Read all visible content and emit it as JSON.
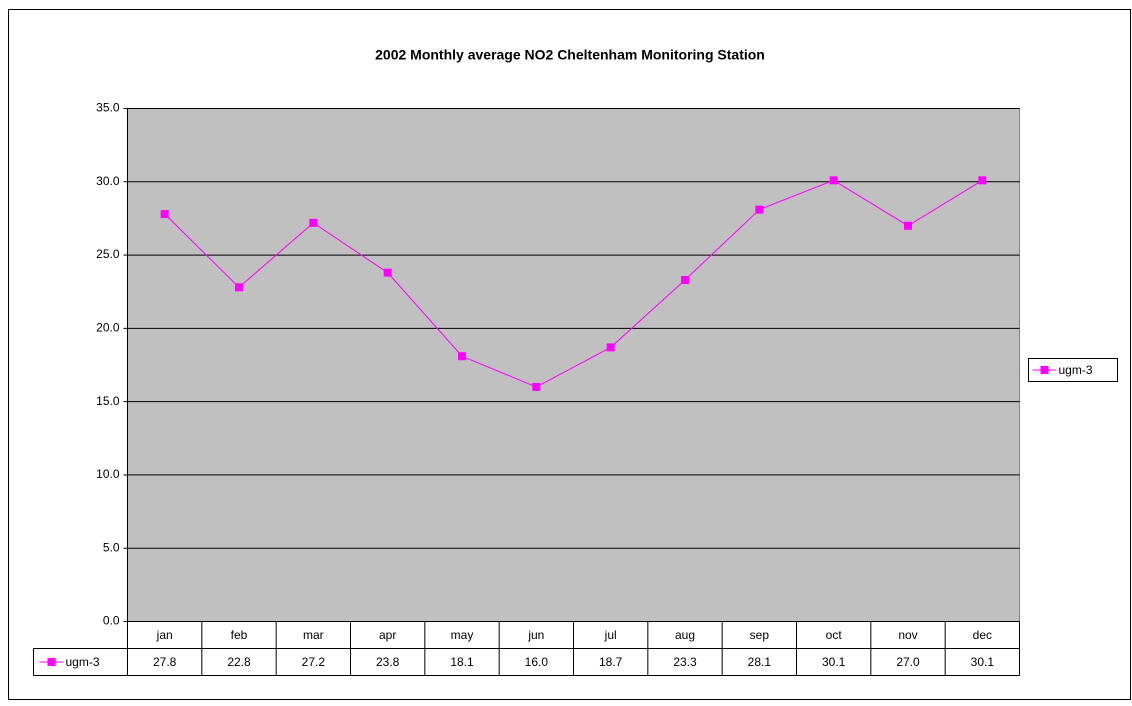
{
  "chart_data": {
    "type": "line",
    "title": "2002 Monthly average NO2 Cheltenham Monitoring Station",
    "categories": [
      "jan",
      "feb",
      "mar",
      "apr",
      "may",
      "jun",
      "jul",
      "aug",
      "sep",
      "oct",
      "nov",
      "dec"
    ],
    "series": [
      {
        "name": "ugm-3",
        "color": "#ff00ff",
        "values": [
          27.8,
          22.8,
          27.2,
          23.8,
          18.1,
          16.0,
          18.7,
          23.3,
          28.1,
          30.1,
          27.0,
          30.1
        ],
        "value_labels": [
          "27.8",
          "22.8",
          "27.2",
          "23.8",
          "18.1",
          "16.0",
          "18.7",
          "23.3",
          "28.1",
          "30.1",
          "27.0",
          "30.1"
        ]
      }
    ],
    "ylim": [
      0,
      35
    ],
    "yticks": [
      {
        "value": 0,
        "label": "0.0"
      },
      {
        "value": 5,
        "label": "5.0"
      },
      {
        "value": 10,
        "label": "10.0"
      },
      {
        "value": 15,
        "label": "15.0"
      },
      {
        "value": 20,
        "label": "20.0"
      },
      {
        "value": 25,
        "label": "25.0"
      },
      {
        "value": 30,
        "label": "30.0"
      },
      {
        "value": 35,
        "label": "35.0"
      }
    ],
    "grid": true,
    "legend": "right",
    "plot_background": "#c0c0c0"
  }
}
